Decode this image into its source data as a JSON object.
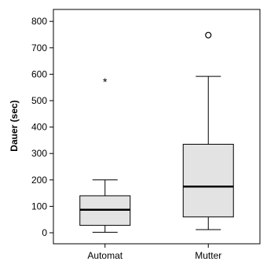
{
  "chart_data": {
    "type": "boxplot",
    "ylabel": "Dauer (sec)",
    "ylim": [
      -30,
      840
    ],
    "yticks": [
      0,
      100,
      200,
      300,
      400,
      500,
      600,
      700,
      800
    ],
    "categories": [
      "Automat",
      "Mutter"
    ],
    "boxes": [
      {
        "category": "Automat",
        "min": 2,
        "q1": 28,
        "median": 87,
        "q3": 140,
        "max": 200,
        "outliers": [],
        "extremes": [
          575
        ]
      },
      {
        "category": "Mutter",
        "min": 12,
        "q1": 60,
        "median": 175,
        "q3": 335,
        "max": 592,
        "outliers": [
          748
        ],
        "extremes": []
      }
    ],
    "box_fill": "#e3e3e3",
    "grid": false
  }
}
